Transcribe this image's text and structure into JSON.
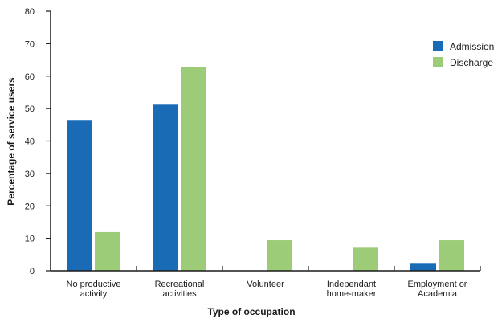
{
  "chart_data": {
    "type": "bar",
    "title": "",
    "xlabel": "Type of occupation",
    "ylabel": "Percentage of service users",
    "ylim": [
      0,
      80
    ],
    "yticks": [
      0,
      10,
      20,
      30,
      40,
      50,
      60,
      70,
      80
    ],
    "categories": [
      [
        "No productive",
        "activity"
      ],
      [
        "Recreational",
        "activities"
      ],
      [
        "Volunteer"
      ],
      [
        "Independant",
        "home-maker"
      ],
      [
        "Employment or",
        "Academia"
      ]
    ],
    "series": [
      {
        "name": "Admission",
        "color": "#1a6bb5",
        "values": [
          46.5,
          51.2,
          0,
          0,
          2.4
        ]
      },
      {
        "name": "Discharge",
        "color": "#9ccc78",
        "values": [
          11.9,
          62.8,
          9.4,
          7.1,
          9.4
        ]
      }
    ],
    "grid": false,
    "legend_position": "top-right"
  }
}
